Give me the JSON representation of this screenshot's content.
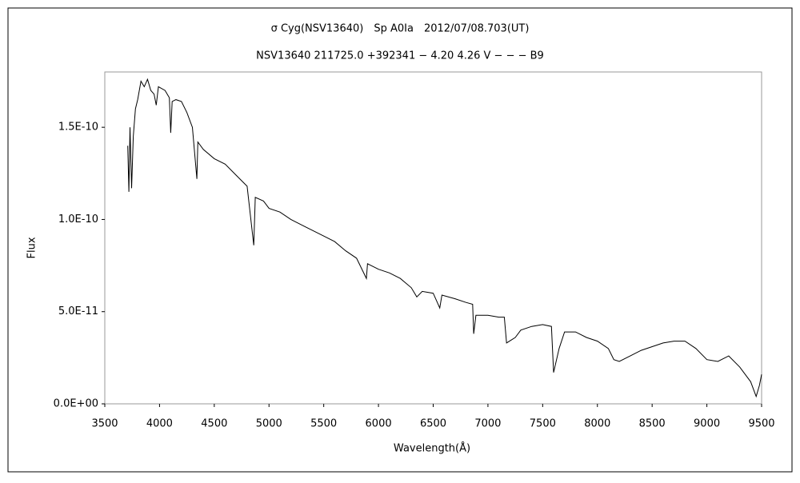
{
  "chart_data": {
    "type": "line",
    "title": "σ Cyg(NSV13640)　Sp A0Ia　2012/07/08.703(UT)",
    "subtitle": "NSV13640 211725.0 +392341 − 4.20 4.26 V − − − B9",
    "xlabel": "Wavelength(Å)",
    "ylabel": "Flux",
    "x": [
      3710,
      3720,
      3730,
      3745,
      3760,
      3780,
      3800,
      3830,
      3860,
      3890,
      3920,
      3950,
      3970,
      3990,
      4050,
      4090,
      4102,
      4115,
      4150,
      4200,
      4250,
      4300,
      4341,
      4350,
      4400,
      4500,
      4600,
      4700,
      4800,
      4861,
      4875,
      4950,
      5000,
      5100,
      5200,
      5300,
      5400,
      5500,
      5600,
      5700,
      5800,
      5890,
      5900,
      6000,
      6100,
      6200,
      6300,
      6350,
      6400,
      6500,
      6560,
      6580,
      6700,
      6800,
      6860,
      6870,
      6890,
      7000,
      7100,
      7150,
      7170,
      7250,
      7300,
      7400,
      7500,
      7580,
      7600,
      7650,
      7700,
      7800,
      7900,
      8000,
      8100,
      8150,
      8200,
      8300,
      8400,
      8500,
      8600,
      8700,
      8800,
      8900,
      9000,
      9100,
      9200,
      9300,
      9400,
      9450,
      9480,
      9500
    ],
    "series": [
      {
        "name": "Flux",
        "color": "#000000",
        "values": [
          1.4e-10,
          1.15e-10,
          1.5e-10,
          1.17e-10,
          1.45e-10,
          1.6e-10,
          1.65e-10,
          1.75e-10,
          1.72e-10,
          1.76e-10,
          1.7e-10,
          1.68e-10,
          1.62e-10,
          1.72e-10,
          1.7e-10,
          1.66e-10,
          1.47e-10,
          1.64e-10,
          1.65e-10,
          1.64e-10,
          1.58e-10,
          1.5e-10,
          1.22e-10,
          1.42e-10,
          1.38e-10,
          1.33e-10,
          1.3e-10,
          1.24e-10,
          1.18e-10,
          8.6e-11,
          1.12e-10,
          1.1e-10,
          1.06e-10,
          1.04e-10,
          1e-10,
          9.7e-11,
          9.4e-11,
          9.1e-11,
          8.8e-11,
          8.3e-11,
          7.9e-11,
          6.8e-11,
          7.6e-11,
          7.3e-11,
          7.1e-11,
          6.8e-11,
          6.3e-11,
          5.8e-11,
          6.1e-11,
          6e-11,
          5.2e-11,
          5.9e-11,
          5.7e-11,
          5.5e-11,
          5.4e-11,
          3.8e-11,
          4.8e-11,
          4.8e-11,
          4.7e-11,
          4.7e-11,
          3.3e-11,
          3.6e-11,
          4e-11,
          4.2e-11,
          4.3e-11,
          4.2e-11,
          1.7e-11,
          3e-11,
          3.9e-11,
          3.9e-11,
          3.6e-11,
          3.4e-11,
          3e-11,
          2.4e-11,
          2.3e-11,
          2.6e-11,
          2.9e-11,
          3.1e-11,
          3.3e-11,
          3.4e-11,
          3.4e-11,
          3e-11,
          2.4e-11,
          2.3e-11,
          2.6e-11,
          2e-11,
          1.2e-11,
          4e-12,
          1e-11,
          1.6e-11
        ]
      }
    ],
    "xlim": [
      3500,
      9500
    ],
    "xticks": [
      3500,
      4000,
      4500,
      5000,
      5500,
      6000,
      6500,
      7000,
      7500,
      8000,
      8500,
      9000,
      9500
    ],
    "ylim": [
      0,
      1.8e-10
    ],
    "yticks": [
      {
        "value": 0,
        "label": "0.0E+00"
      },
      {
        "value": 5e-11,
        "label": "5.0E-11"
      },
      {
        "value": 1e-10,
        "label": "1.0E-10"
      },
      {
        "value": 1.5e-10,
        "label": "1.5E-10"
      }
    ],
    "grid": false
  }
}
